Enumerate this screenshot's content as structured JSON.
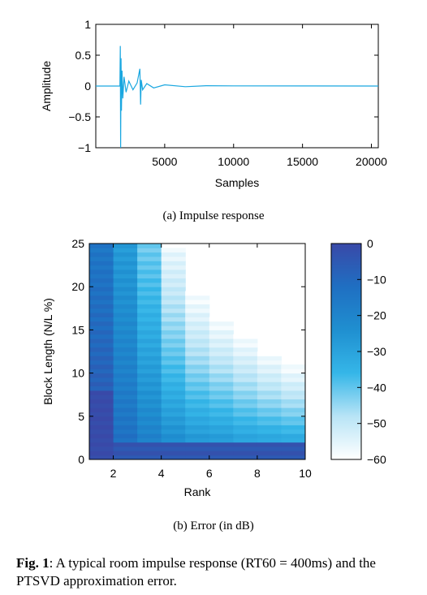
{
  "chart_data": [
    {
      "type": "line",
      "title": "",
      "xlabel": "Samples",
      "ylabel": "Amplitude",
      "xlim": [
        0,
        20500
      ],
      "ylim": [
        -1,
        1
      ],
      "xticks": [
        5000,
        10000,
        15000,
        20000
      ],
      "xtick_labels": [
        "5000",
        "10000",
        "15000",
        "20000"
      ],
      "yticks": [
        1,
        0.5,
        0,
        -0.5,
        -1
      ],
      "ytick_labels": [
        "1",
        "0.5",
        "0",
        "−0.5",
        "−1"
      ],
      "color": "#1aa7e0",
      "series": [
        {
          "x": [
            0,
            1750,
            1780,
            1800,
            1830,
            1860,
            1900,
            1960,
            2050,
            2200,
            2400,
            2700,
            3000,
            3200,
            3250,
            3300,
            3400,
            3700,
            4200,
            5000,
            6500,
            8000,
            10000,
            20500
          ],
          "y": [
            0,
            0,
            0.65,
            -1.0,
            0.45,
            -0.4,
            0.25,
            -0.2,
            0.15,
            -0.1,
            0.08,
            -0.06,
            0.05,
            0.28,
            -0.3,
            0.1,
            -0.06,
            0.04,
            -0.03,
            0.02,
            -0.01,
            0.005,
            0.002,
            0
          ]
        }
      ]
    },
    {
      "type": "heatmap",
      "xlabel": "Rank",
      "ylabel": "Block Length (N/L %)",
      "xlim": [
        1,
        10
      ],
      "ylim": [
        0,
        25
      ],
      "xticks": [
        2,
        4,
        6,
        8,
        10
      ],
      "xtick_labels": [
        "2",
        "4",
        "6",
        "8",
        "10"
      ],
      "yticks": [
        0,
        5,
        10,
        15,
        20,
        25
      ],
      "ytick_labels": [
        "0",
        "5",
        "10",
        "15",
        "20",
        "25"
      ],
      "colorbar": {
        "min": -60,
        "max": 0,
        "ticks": [
          0,
          -10,
          -20,
          -30,
          -40,
          -50,
          -60
        ],
        "tick_labels": [
          "0",
          "−10",
          "−20",
          "−30",
          "−40",
          "−50",
          "−60"
        ],
        "colors": [
          "#ffffff",
          "#b8e4f6",
          "#35b6e8",
          "#1f8fd0",
          "#1f6fc2",
          "#3949a8"
        ]
      },
      "columns": [
        {
          "rank_from": 1,
          "rank_to": 2,
          "max_block_length": 25,
          "error_db_low": -2,
          "error_db_high": -15,
          "low_region_below": 8
        },
        {
          "rank_from": 2,
          "rank_to": 3,
          "max_block_length": 25,
          "error_db_low": -10,
          "error_db_high": -28
        },
        {
          "rank_from": 3,
          "rank_to": 4,
          "max_block_length": 25,
          "error_db_low": -15,
          "error_db_high": -42
        },
        {
          "rank_from": 4,
          "rank_to": 5,
          "max_block_length": 24.5,
          "error_db_low": -18,
          "error_db_high": -57
        },
        {
          "rank_from": 5,
          "rank_to": 6,
          "max_block_length": 19.5,
          "error_db_low": -20,
          "error_db_high": -60
        },
        {
          "rank_from": 6,
          "rank_to": 7,
          "max_block_length": 16.5,
          "error_db_low": -20,
          "error_db_high": -60
        },
        {
          "rank_from": 7,
          "rank_to": 8,
          "max_block_length": 14.5,
          "error_db_low": -22,
          "error_db_high": -60
        },
        {
          "rank_from": 8,
          "rank_to": 9,
          "max_block_length": 12.5,
          "error_db_low": -22,
          "error_db_high": -60
        },
        {
          "rank_from": 9,
          "rank_to": 10,
          "max_block_length": 11,
          "error_db_low": -22,
          "error_db_high": -60
        }
      ]
    }
  ],
  "captions": {
    "a": "(a) Impulse response",
    "b": "(b) Error (in dB)",
    "figure_label": "Fig. 1",
    "figure_text": ": A typical room impulse response (RT60 = 400ms) and the PTSVD approximation error."
  }
}
